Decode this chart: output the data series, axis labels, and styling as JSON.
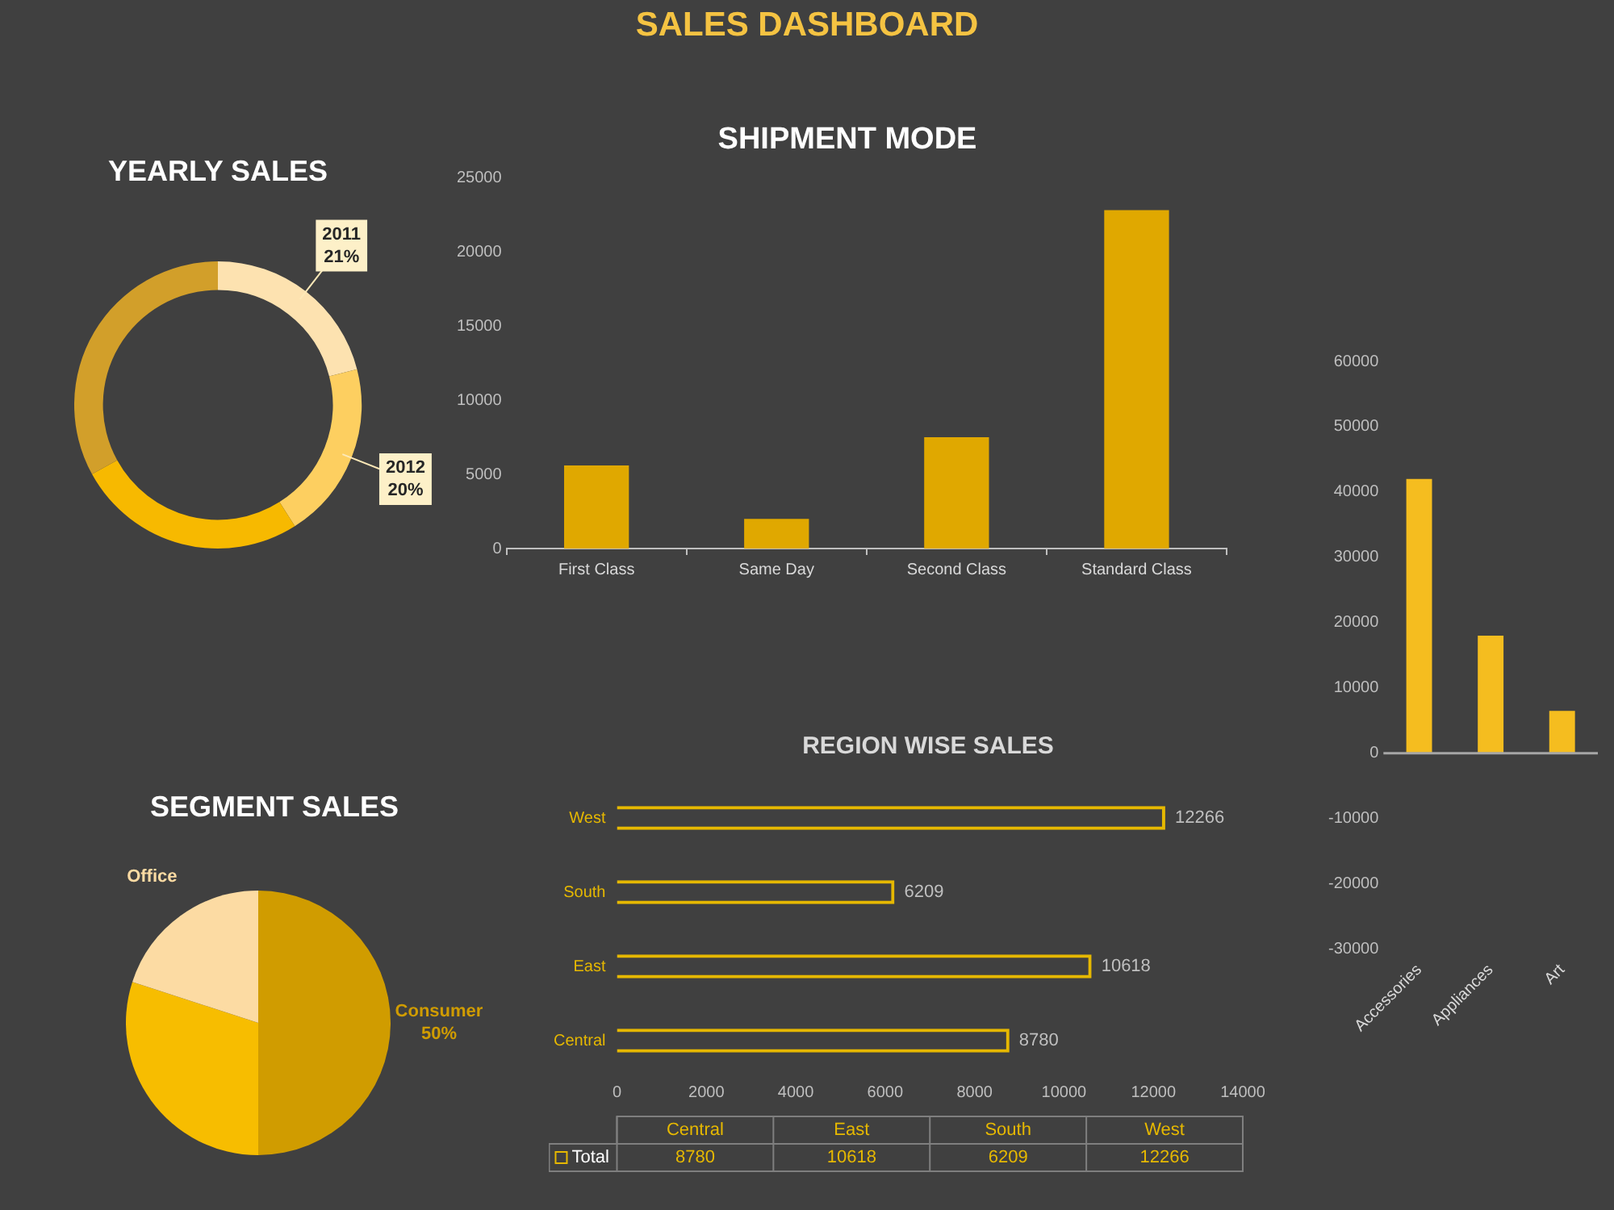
{
  "chart_data": [
    {
      "type": "other",
      "title": "SALES DASHBOARD"
    },
    {
      "type": "donut",
      "title": "YEARLY SALES",
      "categories": [
        "2011",
        "2012",
        null,
        null
      ],
      "values": [
        21,
        20,
        26,
        33
      ],
      "value_labels": [
        "21%",
        "20%",
        null,
        null
      ],
      "colors": [
        "#fde2b0",
        "#fdcf60",
        "#f7b900",
        "#d29f2a"
      ]
    },
    {
      "type": "bar",
      "title": "SHIPMENT MODE",
      "categories": [
        "First Class",
        "Same Day",
        "Second Class",
        "Standard Class"
      ],
      "values": [
        5600,
        2000,
        7500,
        22800
      ],
      "color": "#e0a800",
      "ylim": [
        0,
        25000
      ],
      "yticks": [
        0,
        5000,
        10000,
        15000,
        20000,
        25000
      ]
    },
    {
      "type": "bar",
      "categories": [
        "Accessories",
        "Appliances",
        "Art"
      ],
      "values": [
        42000,
        18000,
        6500
      ],
      "color": "#f5bd1f",
      "ylim": [
        -30000,
        60000
      ],
      "yticks": [
        -30000,
        -20000,
        -10000,
        0,
        10000,
        20000,
        30000,
        40000,
        50000,
        60000
      ]
    },
    {
      "type": "pie",
      "title": "SEGMENT SALES",
      "categories": [
        "Consumer",
        null,
        "Office"
      ],
      "values": [
        50,
        30,
        20
      ],
      "value_labels": [
        "50%",
        null,
        null
      ],
      "colors": [
        "#d09c00",
        "#f7bd00",
        "#fcdba3"
      ]
    },
    {
      "type": "bar",
      "title": "REGION WISE SALES",
      "orientation": "horizontal",
      "categories": [
        "West",
        "South",
        "East",
        "Central"
      ],
      "series": [
        {
          "name": "Total",
          "color": "#e6b800",
          "values": [
            12266,
            6209,
            10618,
            8780
          ]
        }
      ],
      "xlim": [
        0,
        14000
      ],
      "xticks": [
        0,
        2000,
        4000,
        6000,
        8000,
        10000,
        12000,
        14000
      ],
      "data_labels": true,
      "legend": "bottom",
      "annotations": [
        "8780",
        "10618",
        "6209",
        "12266"
      ]
    }
  ]
}
